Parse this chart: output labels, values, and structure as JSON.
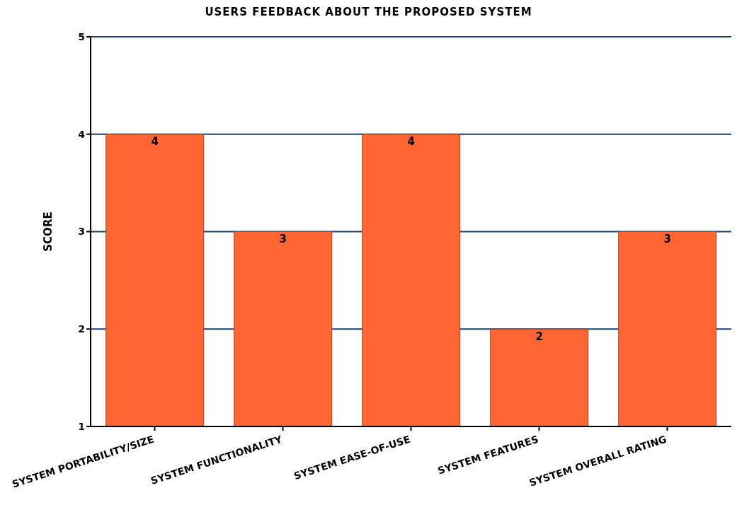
{
  "chart_data": {
    "type": "bar",
    "title": "USERS FEEDBACK ABOUT THE PROPOSED SYSTEM",
    "ylabel": "SCORE",
    "categories": [
      "SYSTEM PORTABILITY/SIZE",
      "SYSTEM FUNCTIONALITY",
      "SYSTEM EASE-OF-USE",
      "SYSTEM FEATURES",
      "SYSTEM OVERALL RATING"
    ],
    "values": [
      4,
      3,
      4,
      2,
      3
    ],
    "color": "#ff6633",
    "ylim": [
      1,
      5
    ],
    "yticks": [
      1,
      2,
      3,
      4,
      5
    ],
    "grid": "y",
    "data_labels": true
  }
}
